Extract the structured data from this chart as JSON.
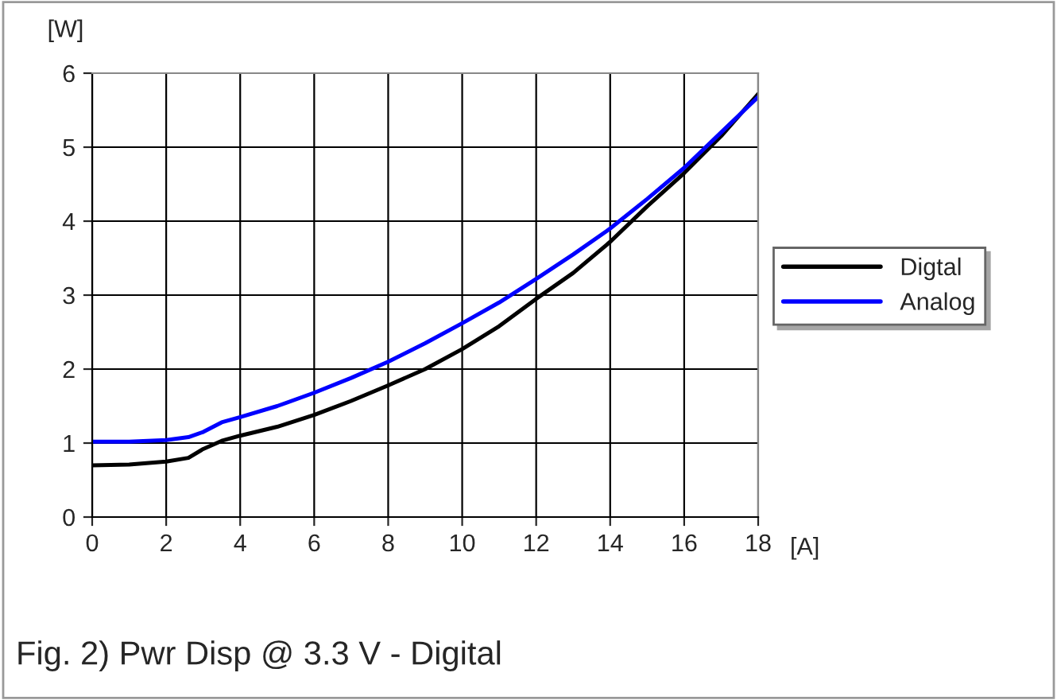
{
  "chart_data": {
    "type": "line",
    "xlabel": "[A]",
    "ylabel": "[W]",
    "x": [
      0,
      1,
      2,
      2.6,
      3,
      3.5,
      4,
      5,
      6,
      7,
      8,
      9,
      10,
      11,
      12,
      13,
      14,
      15,
      16,
      17,
      18
    ],
    "series": [
      {
        "name": "Digtal",
        "color": "#000000",
        "line_style": "solid",
        "values": [
          0.7,
          0.71,
          0.75,
          0.8,
          0.92,
          1.03,
          1.1,
          1.22,
          1.38,
          1.57,
          1.78,
          2.0,
          2.27,
          2.58,
          2.95,
          3.3,
          3.72,
          4.2,
          4.65,
          5.15,
          5.72
        ]
      },
      {
        "name": "Analog",
        "color": "#0000ff",
        "line_style": "solid",
        "values": [
          1.02,
          1.02,
          1.04,
          1.08,
          1.15,
          1.28,
          1.35,
          1.5,
          1.68,
          1.88,
          2.1,
          2.35,
          2.62,
          2.9,
          3.22,
          3.55,
          3.9,
          4.3,
          4.72,
          5.2,
          5.68
        ]
      }
    ],
    "xlim": [
      0,
      18
    ],
    "xticks": [
      0,
      2,
      4,
      6,
      8,
      10,
      12,
      14,
      16,
      18
    ],
    "ylim": [
      0,
      6
    ],
    "yticks": [
      0,
      1,
      2,
      3,
      4,
      5,
      6
    ],
    "grid": true,
    "legend": "right",
    "marker": "none",
    "annotations": [
      "Fig. 2) Pwr Disp @ 3.3 V - Digital"
    ]
  }
}
